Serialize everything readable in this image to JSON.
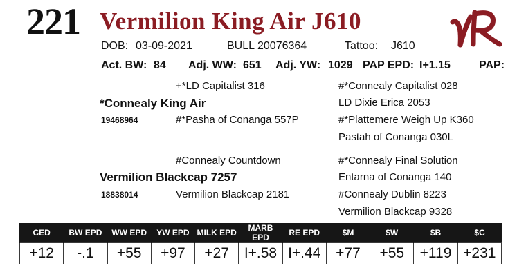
{
  "lot_number": "221",
  "animal_name": "Vermilion King Air J610",
  "logo": {
    "icon": "vr-brand-logo",
    "color": "#8b1c23",
    "text": "VR"
  },
  "colors": {
    "accent": "#8b1c23",
    "table_header_bg": "#161616"
  },
  "info": {
    "dob_label": "DOB:",
    "dob": "03-09-2021",
    "sex": "BULL",
    "reg_number": "20076364",
    "tattoo_label": "Tattoo:",
    "tattoo": "J610"
  },
  "measures": {
    "act_bw_label": "Act. BW:",
    "act_bw": "84",
    "adj_ww_label": "Adj. WW:",
    "adj_ww": "651",
    "adj_yw_label": "Adj. YW:",
    "adj_yw": "1029",
    "pap_epd_label": "PAP EPD:",
    "pap_epd": "I+1.15",
    "pap_label": "PAP:"
  },
  "pedigree": {
    "sire": {
      "name": "*Connealy King Air",
      "reg": "19468964"
    },
    "sire_sire": "+*LD Capitalist 316",
    "sire_dam": "#*Pasha of Conanga 557P",
    "sire_sire_sire": "#*Connealy Capitalist 028",
    "sire_sire_dam": "LD Dixie Erica 2053",
    "sire_dam_sire": "#*Plattemere Weigh Up K360",
    "sire_dam_dam": "Pastah of Conanga 030L",
    "dam": {
      "name": "Vermilion Blackcap 7257",
      "reg": "18838014"
    },
    "dam_sire": "#Connealy Countdown",
    "dam_dam": "Vermilion Blackcap 2181",
    "dam_sire_sire": "#*Connealy Final Solution",
    "dam_sire_dam": "Entarna of Conanga 140",
    "dam_dam_sire": "#Connealy Dublin 8223",
    "dam_dam_dam": "Vermilion Blackcap 9328"
  },
  "epd_table": {
    "headers": [
      "CED",
      "BW EPD",
      "WW EPD",
      "YW EPD",
      "MILK EPD",
      "MARB EPD",
      "RE EPD",
      "$M",
      "$W",
      "$B",
      "$C"
    ],
    "values": [
      "+12",
      "-.1",
      "+55",
      "+97",
      "+27",
      "I+.58",
      "I+.44",
      "+77",
      "+55",
      "+119",
      "+231"
    ]
  }
}
